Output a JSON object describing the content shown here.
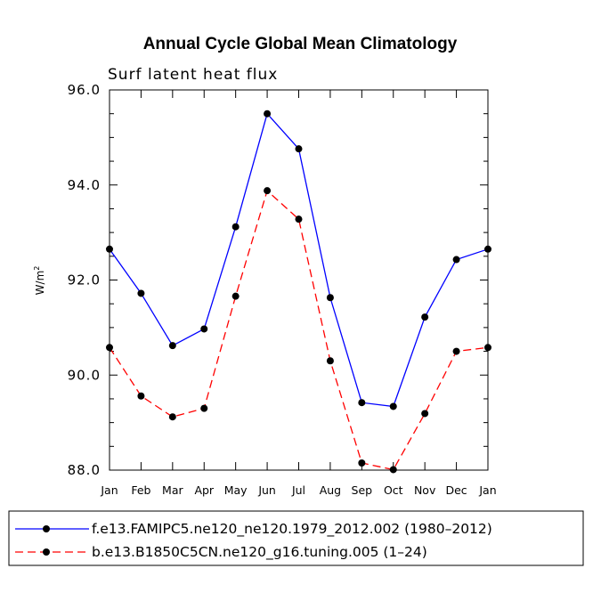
{
  "chart_data": {
    "type": "line",
    "title": "Annual Cycle Global Mean Climatology",
    "subtitle": "Surf latent heat flux",
    "ylabel": "W/m",
    "ylabel_sup": "2",
    "xlabel": "",
    "categories": [
      "Jan",
      "Feb",
      "Mar",
      "Apr",
      "May",
      "Jun",
      "Jul",
      "Aug",
      "Sep",
      "Oct",
      "Nov",
      "Dec",
      "Jan"
    ],
    "ylim": [
      88.0,
      96.0
    ],
    "yticks": [
      "88.0",
      "90.0",
      "92.0",
      "94.0",
      "96.0"
    ],
    "grid": false,
    "legend_position": "bottom",
    "series": [
      {
        "name": "f.e13.FAMIPC5.ne120_ne120.1979_2012.002 (1980–2012)",
        "color": "#0000ff",
        "dash": "solid",
        "values": [
          92.65,
          91.72,
          90.62,
          90.97,
          93.12,
          95.5,
          94.76,
          91.63,
          89.42,
          89.34,
          91.22,
          92.43,
          92.65
        ]
      },
      {
        "name": "b.e13.B1850C5CN.ne120_g16.tuning.005 (1–24)",
        "color": "#ff0000",
        "dash": "dashed",
        "values": [
          90.58,
          89.56,
          89.12,
          89.3,
          91.66,
          93.88,
          93.28,
          90.3,
          88.15,
          88.01,
          89.19,
          90.5,
          90.58
        ]
      }
    ]
  }
}
